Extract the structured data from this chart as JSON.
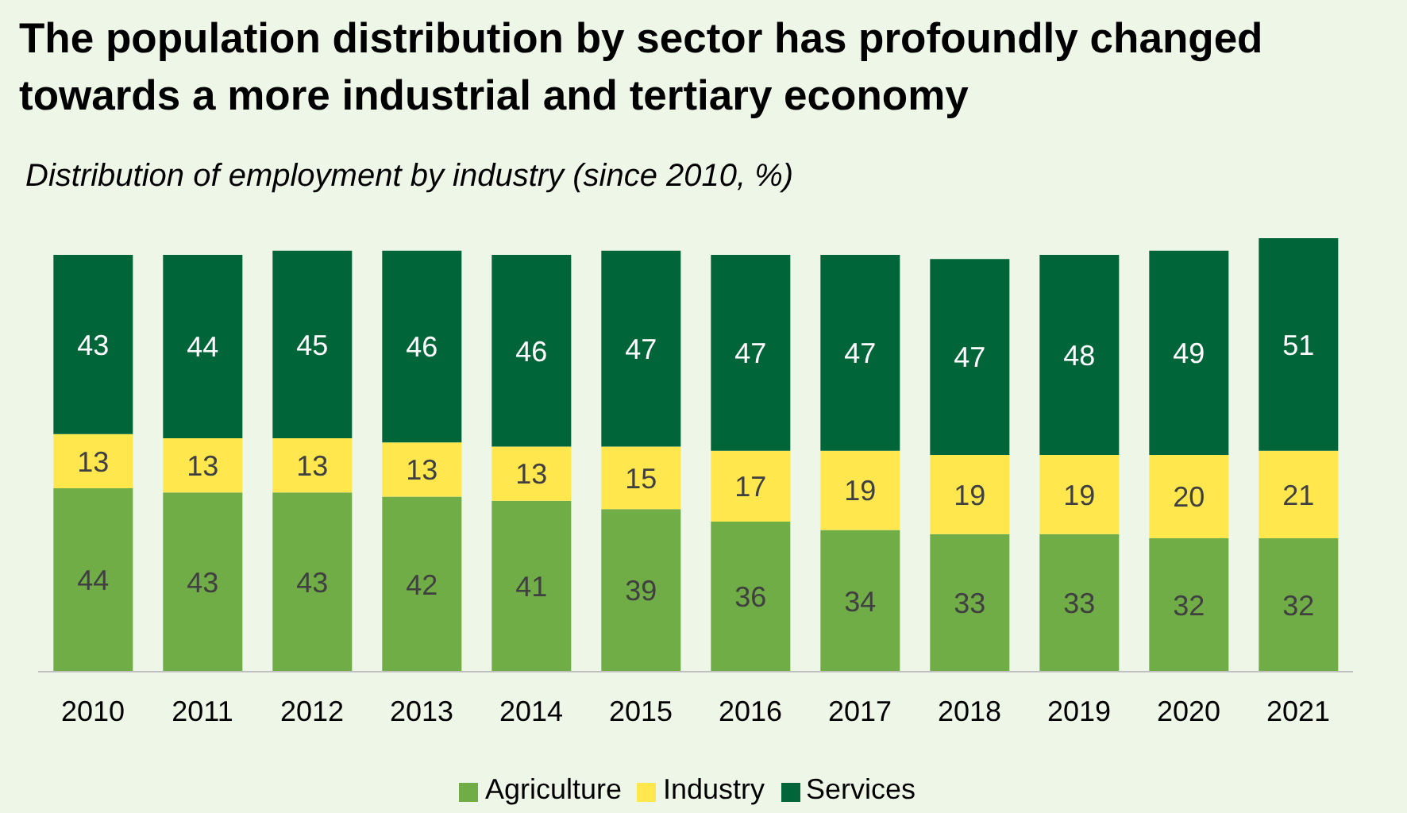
{
  "chart_data": {
    "type": "bar",
    "title": "The population distribution by sector has profoundly changed towards a more industrial and tertiary economy",
    "subtitle": "Distribution of employment by industry (since 2010, %)",
    "categories": [
      "2010",
      "2011",
      "2012",
      "2013",
      "2014",
      "2015",
      "2016",
      "2017",
      "2018",
      "2019",
      "2020",
      "2021"
    ],
    "stacked": true,
    "data_labels": true,
    "legend": "bottom",
    "grid": false,
    "series": [
      {
        "name": "Agriculture",
        "color": "#70ad47",
        "values": [
          44,
          43,
          43,
          42,
          41,
          39,
          36,
          34,
          33,
          33,
          32,
          32
        ]
      },
      {
        "name": "Industry",
        "color": "#ffe74d",
        "values": [
          13,
          13,
          13,
          13,
          13,
          15,
          17,
          19,
          19,
          19,
          20,
          21
        ]
      },
      {
        "name": "Services",
        "color": "#00663a",
        "values": [
          43,
          44,
          45,
          46,
          46,
          47,
          47,
          47,
          47,
          48,
          49,
          51
        ]
      }
    ]
  }
}
